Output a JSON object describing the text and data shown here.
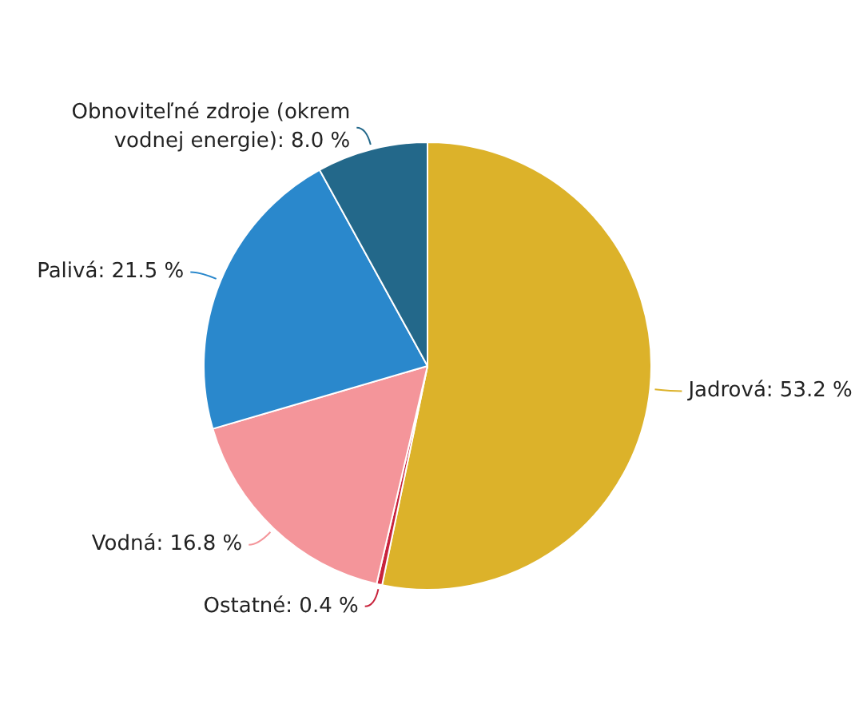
{
  "chart_data": {
    "type": "pie",
    "categories": [
      "Jadrová",
      "Ostatné",
      "Vodná",
      "Palivá",
      "Obnoviteľné zdroje (okrem vodnej energie)"
    ],
    "values": [
      53.2,
      0.4,
      16.8,
      21.5,
      8.0
    ],
    "value_labels": [
      "53.2 %",
      "0.4 %",
      "16.8 %",
      "21.5 %",
      "8.0 %"
    ],
    "colors": [
      "#dcb22a",
      "#c8233c",
      "#f4959a",
      "#2a88cc",
      "#23688a"
    ],
    "legend": false
  }
}
